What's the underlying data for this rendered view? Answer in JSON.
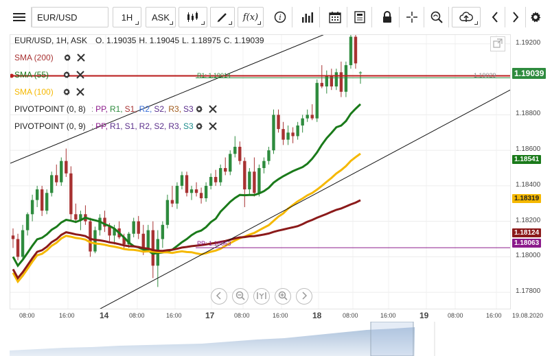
{
  "toolbar": {
    "menu_icon": "hamburger-menu-icon",
    "symbol": "EUR/USD",
    "timeframe": "1H",
    "price_side": "ASK",
    "buttons": [
      "candle-type-icon",
      "pen-draw-icon",
      "function-icon",
      "info-icon",
      "bars-indicator-icon",
      "calendar-icon",
      "news-icon",
      "lock-icon",
      "crosshair-icon",
      "magnifier-icon",
      "cloud-upload-icon",
      "arrow-left-icon",
      "arrow-right-icon",
      "gear-icon"
    ],
    "fx_label": "f(x)"
  },
  "legend": {
    "ohlc": {
      "title": "EUR/USD, 1H, ASK",
      "open": "O. 1.19035",
      "high": "H. 1.19045",
      "low": "L. 1.18975",
      "close": "C. 1.19039"
    },
    "sma200": "SMA (200)",
    "sma55": "SMA (55)",
    "sma100": "SMA (100)",
    "pivot1": {
      "label": "PIVOTPOINT (0, 8)",
      "prefix": ":",
      "levels": [
        "PP,",
        "R1,",
        "S1,",
        "R2,",
        "S2,",
        "R3,",
        "S3"
      ]
    },
    "pivot2": {
      "label": "PIVOTPOINT (0, 9)",
      "prefix": ":",
      "levels": [
        "PP,",
        "R1,",
        "S1,",
        "R2,",
        "S2,",
        "R3,",
        "S3"
      ]
    }
  },
  "colors": {
    "bull": "#2e8b3e",
    "bear": "#a83232",
    "sma200": "#8b1a1a",
    "sma55": "#1a7a1a",
    "sma100": "#f5b800",
    "pp": "#8b1a8b",
    "r1": "#2e8b3e",
    "s1": "#a83232",
    "r2": "#3a6fd8",
    "s2": "#5a2e8b",
    "r3": "#a05a1a",
    "s3": "#1a8b8b"
  },
  "chart_data": {
    "type": "candlestick",
    "symbol": "EUR/USD",
    "interval": "1H",
    "ylim": [
      1.177,
      1.1925
    ],
    "y_ticks": [
      "1.19200",
      "1.18800",
      "1.18600",
      "1.18400",
      "1.18200",
      "1.18000",
      "1.17800"
    ],
    "x_ticks": [
      "08:00",
      "16:00",
      "14",
      "08:00",
      "16:00",
      "17",
      "08:00",
      "16:00",
      "18",
      "08:00",
      "16:00",
      "19",
      "08:00",
      "16:00",
      "19.08.2020"
    ],
    "price_tags": [
      {
        "value": "1.19039",
        "color": "#2e8b3e",
        "big": true
      },
      {
        "value": "1.18541",
        "color": "#1a7a1a",
        "big": false
      },
      {
        "value": "1.18319",
        "color": "#f5b800",
        "big": false
      },
      {
        "value": "1.18124",
        "color": "#8b1a1a",
        "big": false
      },
      {
        "value": "1.18063",
        "color": "#8b1a8b",
        "big": false
      }
    ],
    "pivot_levels": [
      {
        "label": "R1: 1.19014",
        "value": 1.19014
      },
      {
        "label": "1.19029",
        "value": 1.19029
      },
      {
        "label": "PP: 1.18063",
        "value": 1.18063
      }
    ],
    "candles": [
      [
        1.1812,
        1.1816,
        1.1805,
        1.181
      ],
      [
        1.181,
        1.1813,
        1.1798,
        1.18
      ],
      [
        1.18,
        1.1818,
        1.1799,
        1.1815
      ],
      [
        1.1815,
        1.1825,
        1.1812,
        1.1824
      ],
      [
        1.1824,
        1.1835,
        1.182,
        1.1832
      ],
      [
        1.1832,
        1.184,
        1.1828,
        1.1838
      ],
      [
        1.1838,
        1.184,
        1.1823,
        1.1826
      ],
      [
        1.1826,
        1.1838,
        1.1824,
        1.1836
      ],
      [
        1.1836,
        1.1848,
        1.1834,
        1.1846
      ],
      [
        1.1846,
        1.1852,
        1.184,
        1.1842
      ],
      [
        1.1842,
        1.1856,
        1.184,
        1.1854
      ],
      [
        1.1854,
        1.1861,
        1.1845,
        1.1847
      ],
      [
        1.1847,
        1.1851,
        1.182,
        1.1824
      ],
      [
        1.1824,
        1.183,
        1.1819,
        1.1821
      ],
      [
        1.1821,
        1.1826,
        1.1815,
        1.1824
      ],
      [
        1.1824,
        1.1829,
        1.1818,
        1.182
      ],
      [
        1.182,
        1.1822,
        1.18,
        1.1803
      ],
      [
        1.1803,
        1.1817,
        1.1802,
        1.1815
      ],
      [
        1.1815,
        1.1824,
        1.1812,
        1.1822
      ],
      [
        1.1822,
        1.1826,
        1.1814,
        1.1817
      ],
      [
        1.1817,
        1.1819,
        1.1808,
        1.1812
      ],
      [
        1.1812,
        1.1818,
        1.1807,
        1.1816
      ],
      [
        1.1816,
        1.182,
        1.181,
        1.1811
      ],
      [
        1.1811,
        1.1813,
        1.1804,
        1.1807
      ],
      [
        1.1807,
        1.1814,
        1.1805,
        1.1813
      ],
      [
        1.1813,
        1.1822,
        1.1811,
        1.182
      ],
      [
        1.182,
        1.1823,
        1.181,
        1.1813
      ],
      [
        1.1813,
        1.1818,
        1.1801,
        1.1805
      ],
      [
        1.1805,
        1.1818,
        1.1803,
        1.1815
      ],
      [
        1.1815,
        1.182,
        1.1788,
        1.1795
      ],
      [
        1.1795,
        1.1815,
        1.1783,
        1.181
      ],
      [
        1.181,
        1.182,
        1.1805,
        1.1818
      ],
      [
        1.1818,
        1.1835,
        1.1816,
        1.1832
      ],
      [
        1.1832,
        1.184,
        1.1828,
        1.183
      ],
      [
        1.183,
        1.1842,
        1.1827,
        1.184
      ],
      [
        1.184,
        1.1848,
        1.1838,
        1.1846
      ],
      [
        1.1846,
        1.1848,
        1.1834,
        1.1836
      ],
      [
        1.1836,
        1.184,
        1.1832,
        1.1838
      ],
      [
        1.1838,
        1.1842,
        1.1834,
        1.1836
      ],
      [
        1.1836,
        1.1839,
        1.183,
        1.1833
      ],
      [
        1.1833,
        1.1842,
        1.1831,
        1.184
      ],
      [
        1.184,
        1.1847,
        1.1838,
        1.1845
      ],
      [
        1.1845,
        1.1849,
        1.184,
        1.1842
      ],
      [
        1.1842,
        1.1852,
        1.184,
        1.185
      ],
      [
        1.185,
        1.1856,
        1.1846,
        1.1848
      ],
      [
        1.1848,
        1.186,
        1.1846,
        1.1858
      ],
      [
        1.1858,
        1.1868,
        1.1856,
        1.1862
      ],
      [
        1.1862,
        1.1865,
        1.1852,
        1.1854
      ],
      [
        1.1854,
        1.1856,
        1.1828,
        1.1838
      ],
      [
        1.1838,
        1.185,
        1.1835,
        1.1848
      ],
      [
        1.1848,
        1.1856,
        1.1834,
        1.1836
      ],
      [
        1.1836,
        1.1852,
        1.1834,
        1.185
      ],
      [
        1.185,
        1.1856,
        1.1847,
        1.1854
      ],
      [
        1.1854,
        1.1862,
        1.1852,
        1.186
      ],
      [
        1.186,
        1.1883,
        1.1858,
        1.188
      ],
      [
        1.188,
        1.1883,
        1.187,
        1.1872
      ],
      [
        1.1872,
        1.1876,
        1.1863,
        1.1866
      ],
      [
        1.1866,
        1.1874,
        1.1863,
        1.187
      ],
      [
        1.187,
        1.1873,
        1.1864,
        1.1868
      ],
      [
        1.1868,
        1.1876,
        1.1866,
        1.1874
      ],
      [
        1.1874,
        1.188,
        1.187,
        1.1878
      ],
      [
        1.1878,
        1.1883,
        1.1876,
        1.188
      ],
      [
        1.188,
        1.1886,
        1.1877,
        1.1878
      ],
      [
        1.1878,
        1.19,
        1.1876,
        1.1898
      ],
      [
        1.1898,
        1.1908,
        1.1895,
        1.1896
      ],
      [
        1.1896,
        1.1905,
        1.1892,
        1.1902
      ],
      [
        1.1902,
        1.1906,
        1.1894,
        1.1896
      ],
      [
        1.1896,
        1.1906,
        1.1894,
        1.1904
      ],
      [
        1.1904,
        1.191,
        1.189,
        1.1893
      ],
      [
        1.1893,
        1.191,
        1.189,
        1.1908
      ],
      [
        1.1908,
        1.1929,
        1.1906,
        1.1924
      ],
      [
        1.1924,
        1.1926,
        1.1906,
        1.1909
      ],
      [
        1.19035,
        1.19045,
        1.18975,
        1.19039
      ]
    ]
  }
}
